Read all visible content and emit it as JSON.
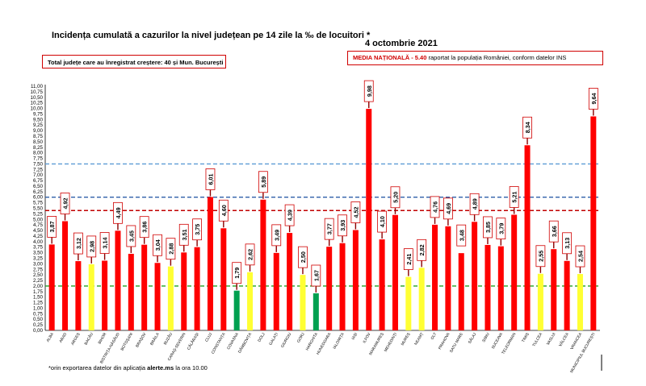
{
  "header": {
    "title": "Incidența cumulată a cazurilor la nivel județean pe 14 zile la ‰ de locuitori *",
    "date": "4 octombrie 2021"
  },
  "info_box": {
    "text": "Total județe care au înregistrat creștere:  40 și Mun. București"
  },
  "media_box": {
    "label": "MEDIA NAȚIONALĂ",
    "value_text": " - 5.40",
    "rest": " raportat la populația României, conform datelor INS"
  },
  "footnote": {
    "prefix": "*orin exportarea datelor din aplicația ",
    "bold": "alerte.ms",
    "suffix": " la ora 10.00"
  },
  "colors": {
    "red": "#ff0000",
    "yellow": "#ffff33",
    "green": "#00a050",
    "border_red": "#d00000",
    "line_blue_light": "#5b9bd5",
    "line_blue_dark": "#2e5fa8",
    "line_red": "#c00000",
    "line_green": "#22a022"
  },
  "chart_data": {
    "type": "bar",
    "categories": [
      "ALBA",
      "ARAD",
      "ARGEȘ",
      "BACĂU",
      "BIHOR",
      "BISTRIȚA-NĂSĂUD",
      "BOTOȘANI",
      "BRAȘOV",
      "BRĂILA",
      "BUZĂU",
      "CARAȘ-SEVERIN",
      "CĂLĂRAȘI",
      "CLUJ",
      "CONSTANȚA",
      "COVASNA",
      "DÂMBOVIȚA",
      "DOLJ",
      "GALAȚI",
      "GIURGIU",
      "GORJ",
      "HARGHITA",
      "HUNEDOARA",
      "IALOMIȚA",
      "IAȘI",
      "ILFOV",
      "MARAMUREȘ",
      "MEHEDINȚI",
      "MUREȘ",
      "NEAMȚ",
      "OLT",
      "PRAHOVA",
      "SATU MARE",
      "SĂLAJ",
      "SIBIU",
      "SUCEAVA",
      "TELEORMAN",
      "TIMIȘ",
      "TULCEA",
      "VASLUI",
      "VÂLCEA",
      "VRANCEA",
      "MUNICIPIUL BUCUREȘTI"
    ],
    "values": [
      3.87,
      4.92,
      3.12,
      2.98,
      3.14,
      4.49,
      3.45,
      3.86,
      3.04,
      2.88,
      3.51,
      3.75,
      6.01,
      4.6,
      1.79,
      2.62,
      5.89,
      3.49,
      4.39,
      2.5,
      1.67,
      3.77,
      3.93,
      4.52,
      9.98,
      4.1,
      5.2,
      2.41,
      2.82,
      4.76,
      4.69,
      3.48,
      4.89,
      3.85,
      3.79,
      5.21,
      8.34,
      2.55,
      3.66,
      3.13,
      2.54,
      9.64
    ],
    "labels": [
      "3,87",
      "4,92",
      "3,12",
      "2,98",
      "3,14",
      "4,49",
      "3,45",
      "3,86",
      "3,04",
      "2,88",
      "3,51",
      "3,75",
      "6,01",
      "4,60",
      "1,79",
      "2,62",
      "5,89",
      "3,49",
      "4,39",
      "2,50",
      "1,67",
      "3,77",
      "3,93",
      "4,52",
      "9,98",
      "4,10",
      "5,20",
      "2,41",
      "2,82",
      "4,76",
      "4,69",
      "3,48",
      "4,89",
      "3,85",
      "3,79",
      "5,21",
      "8,34",
      "2,55",
      "3,66",
      "3,13",
      "2,54",
      "9,64"
    ],
    "bar_colors": [
      "red",
      "red",
      "red",
      "yellow",
      "red",
      "red",
      "red",
      "red",
      "red",
      "yellow",
      "red",
      "red",
      "red",
      "red",
      "green",
      "yellow",
      "red",
      "red",
      "red",
      "yellow",
      "green",
      "red",
      "red",
      "red",
      "red",
      "red",
      "red",
      "yellow",
      "yellow",
      "red",
      "red",
      "red",
      "red",
      "red",
      "red",
      "red",
      "red",
      "yellow",
      "red",
      "red",
      "yellow",
      "red"
    ],
    "arrows": [
      true,
      true,
      true,
      true,
      true,
      true,
      true,
      true,
      true,
      true,
      true,
      true,
      true,
      true,
      true,
      true,
      true,
      true,
      true,
      true,
      true,
      true,
      true,
      true,
      true,
      true,
      true,
      true,
      true,
      true,
      true,
      false,
      true,
      true,
      true,
      true,
      true,
      true,
      true,
      true,
      true,
      true
    ],
    "ylim": [
      0,
      11
    ],
    "y_tick_step": 0.25,
    "reference_lines": [
      {
        "value": 7.5,
        "color": "line_blue_light"
      },
      {
        "value": 6.0,
        "color": "line_blue_dark"
      },
      {
        "value": 5.4,
        "color": "line_red"
      },
      {
        "value": 2.0,
        "color": "line_green"
      }
    ],
    "grid": false
  }
}
